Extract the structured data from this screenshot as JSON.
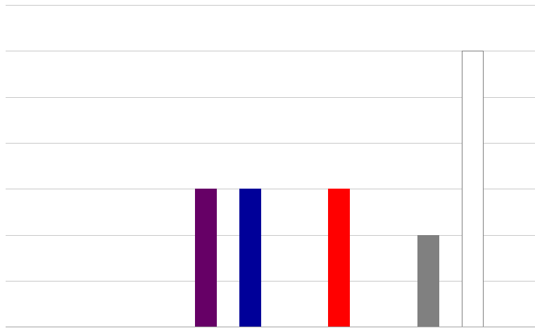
{
  "chart_data": {
    "type": "bar",
    "title": "",
    "xlabel": "",
    "ylabel": "",
    "ylim": [
      0,
      7
    ],
    "y_gridline_step": 1,
    "grid": true,
    "legend": "none",
    "slots": 12,
    "bars": [
      {
        "slot": 4,
        "value": 3,
        "color": "#660066",
        "outline": false
      },
      {
        "slot": 5,
        "value": 3,
        "color": "#000099",
        "outline": false
      },
      {
        "slot": 7,
        "value": 3,
        "color": "#ff0000",
        "outline": false
      },
      {
        "slot": 9,
        "value": 2,
        "color": "#808080",
        "outline": false
      },
      {
        "slot": 10,
        "value": 6,
        "color": "#ffffff",
        "outline": true,
        "outline_color": "#808080"
      }
    ]
  }
}
